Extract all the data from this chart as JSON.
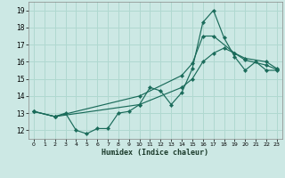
{
  "xlabel": "Humidex (Indice chaleur)",
  "xlim": [
    -0.5,
    23.5
  ],
  "ylim": [
    11.5,
    19.5
  ],
  "xticks": [
    0,
    1,
    2,
    3,
    4,
    5,
    6,
    7,
    8,
    9,
    10,
    11,
    12,
    13,
    14,
    15,
    16,
    17,
    18,
    19,
    20,
    21,
    22,
    23
  ],
  "yticks": [
    12,
    13,
    14,
    15,
    16,
    17,
    18,
    19
  ],
  "bg_color": "#cce8e4",
  "grid_color": "#b0d8d0",
  "line_color": "#1a6b5a",
  "line1_x": [
    0,
    2,
    3,
    4,
    5,
    6,
    7,
    8,
    9,
    10,
    11,
    12,
    13,
    14,
    15,
    16,
    17,
    18,
    19,
    20,
    21,
    22,
    23
  ],
  "line1_y": [
    13.1,
    12.8,
    13.0,
    12.0,
    11.8,
    12.1,
    12.1,
    13.0,
    13.1,
    13.5,
    14.5,
    14.3,
    13.5,
    14.2,
    15.6,
    18.3,
    19.0,
    17.4,
    16.3,
    15.5,
    16.0,
    15.5,
    15.5
  ],
  "line2_x": [
    0,
    2,
    10,
    14,
    15,
    16,
    17,
    19,
    20,
    22,
    23
  ],
  "line2_y": [
    13.1,
    12.8,
    14.0,
    15.2,
    15.9,
    17.5,
    17.5,
    16.5,
    16.2,
    16.0,
    15.6
  ],
  "line3_x": [
    0,
    2,
    10,
    14,
    15,
    16,
    17,
    18,
    19,
    20,
    22,
    23
  ],
  "line3_y": [
    13.1,
    12.8,
    13.5,
    14.5,
    15.0,
    16.0,
    16.5,
    16.8,
    16.5,
    16.1,
    15.8,
    15.55
  ]
}
